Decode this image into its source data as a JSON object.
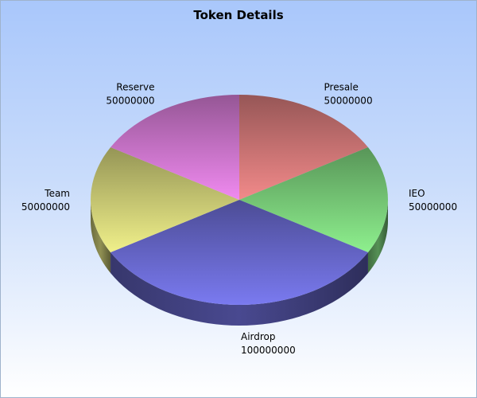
{
  "chart_data": {
    "type": "pie",
    "title": "Token Details",
    "three_d": true,
    "slices": [
      {
        "label": "Presale",
        "value": 50000000,
        "color": "#f28a8a"
      },
      {
        "label": "IEO",
        "value": 50000000,
        "color": "#8ef08e"
      },
      {
        "label": "Airdrop",
        "value": 100000000,
        "color": "#7a7af0"
      },
      {
        "label": "Team",
        "value": 50000000,
        "color": "#f0f08a"
      },
      {
        "label": "Reserve",
        "value": 50000000,
        "color": "#f08af0"
      }
    ],
    "value_labels": [
      "50000000",
      "50000000",
      "100000000",
      "50000000",
      "50000000"
    ],
    "background": "gradient light blue to white",
    "legend": "none"
  }
}
